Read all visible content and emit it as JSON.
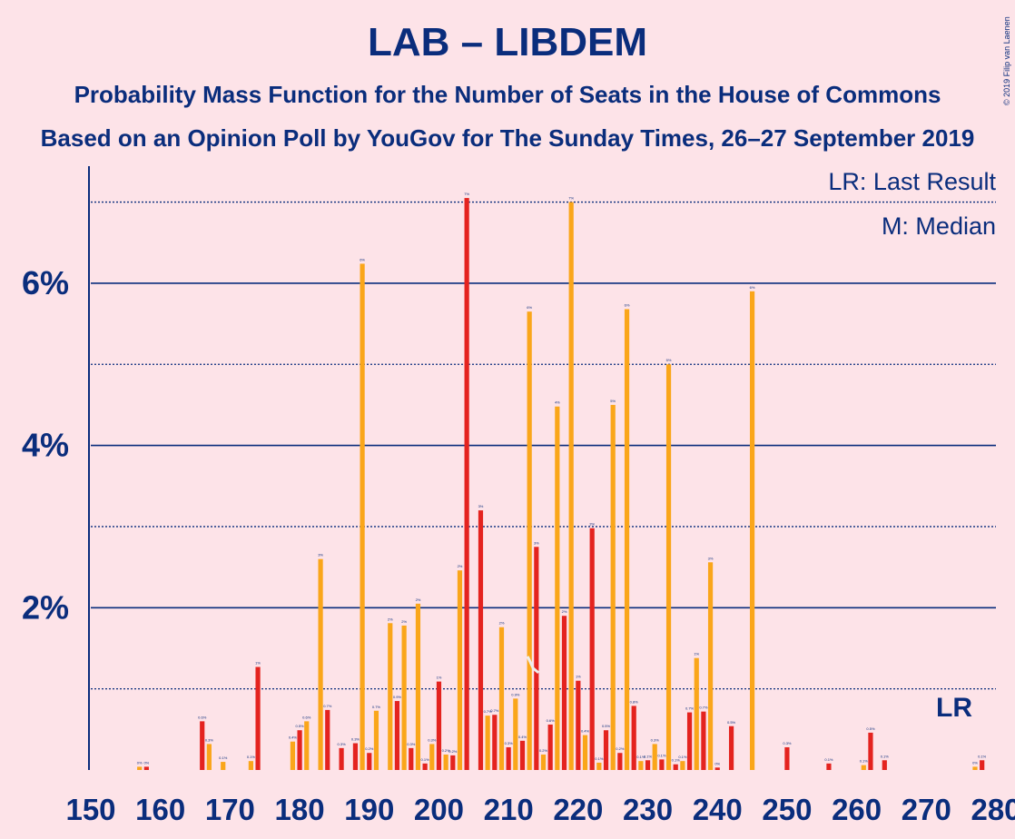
{
  "title": "LAB – LIBDEM",
  "subtitle": "Probability Mass Function for the Number of Seats in the House of Commons",
  "source": "Based on an Opinion Poll by YouGov for The Sunday Times, 26–27 September 2019",
  "copyright": "© 2019 Filip van Laenen",
  "legend": {
    "last_result": "LR: Last Result",
    "median": "M: Median"
  },
  "lr_marker": "LR",
  "colors": {
    "background": "#FDE3E8",
    "lab": "#E4231F",
    "libdem": "#FAA61A",
    "text": "#0A2D7C"
  },
  "chart_data": {
    "type": "bar",
    "x_range": [
      150,
      280
    ],
    "ylim": [
      0,
      7.7
    ],
    "y_ticks": [
      2,
      4,
      6
    ],
    "y_tick_labels": [
      "2%",
      "4%",
      "6%"
    ],
    "x_ticks": [
      150,
      160,
      170,
      180,
      190,
      200,
      210,
      220,
      230,
      240,
      250,
      260,
      270,
      280
    ],
    "last_result_seat": 279,
    "median_seat": 213,
    "series": [
      {
        "color": "lab",
        "x": [
          158,
          166,
          174,
          180,
          184,
          186,
          188,
          190,
          194,
          196,
          198,
          200,
          202,
          204,
          206,
          208,
          210,
          212,
          214,
          216,
          218,
          220,
          222,
          224,
          226,
          228,
          230,
          232,
          234,
          236,
          238,
          240,
          242,
          250,
          256,
          262,
          264,
          278
        ],
        "values": [
          0.04,
          0.6,
          1.27,
          0.49,
          0.74,
          0.27,
          0.33,
          0.21,
          0.85,
          0.27,
          0.08,
          1.09,
          0.18,
          7.05,
          3.2,
          0.68,
          0.28,
          0.36,
          2.75,
          0.56,
          1.9,
          1.1,
          2.98,
          0.49,
          0.21,
          0.79,
          0.12,
          0.13,
          0.07,
          0.71,
          0.72,
          0.03,
          0.54,
          0.28,
          0.08,
          0.46,
          0.12,
          0.12
        ]
      },
      {
        "color": "libdem",
        "x": [
          157,
          167,
          169,
          173,
          179,
          181,
          183,
          189,
          191,
          193,
          195,
          197,
          199,
          201,
          203,
          207,
          209,
          211,
          213,
          215,
          217,
          219,
          221,
          223,
          225,
          227,
          229,
          231,
          233,
          235,
          237,
          239,
          245,
          261,
          277
        ],
        "values": [
          0.04,
          0.32,
          0.1,
          0.11,
          0.35,
          0.6,
          2.6,
          6.24,
          0.73,
          1.81,
          1.78,
          2.05,
          0.32,
          0.19,
          2.46,
          0.67,
          1.76,
          0.88,
          5.65,
          0.19,
          4.48,
          7.0,
          0.43,
          0.09,
          4.5,
          5.68,
          0.11,
          0.32,
          5.0,
          0.11,
          1.38,
          2.56,
          5.9,
          0.06,
          0.04
        ]
      }
    ]
  }
}
